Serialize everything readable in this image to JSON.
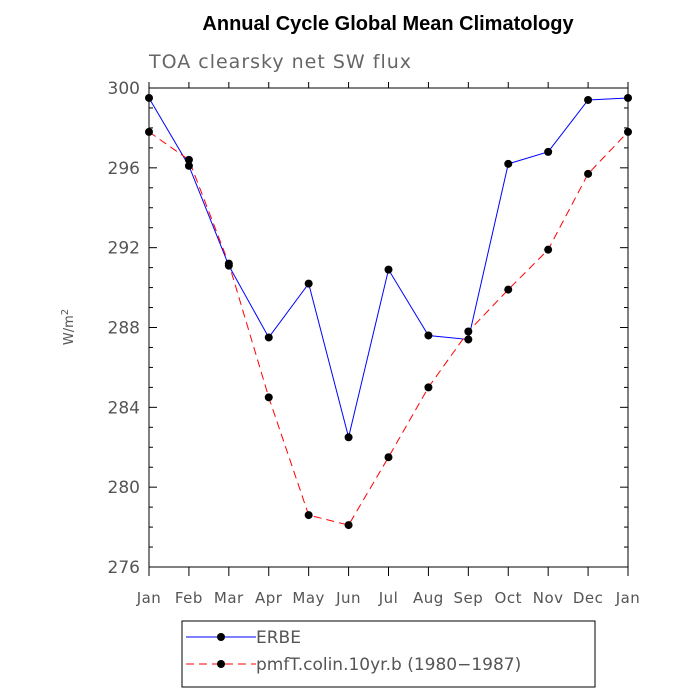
{
  "chart_data": {
    "type": "line",
    "title": "Annual Cycle Global Mean Climatology",
    "subtitle": "TOA clearsky net SW flux",
    "ylabel_base": "W/m",
    "ylabel_sup": "2",
    "xlabel": "",
    "categories": [
      "Jan",
      "Feb",
      "Mar",
      "Apr",
      "May",
      "Jun",
      "Jul",
      "Aug",
      "Sep",
      "Oct",
      "Nov",
      "Dec",
      "Jan"
    ],
    "ylim": [
      276,
      300
    ],
    "yticks": [
      276,
      280,
      284,
      288,
      292,
      296,
      300
    ],
    "grid": false,
    "legend_position": "bottom",
    "series": [
      {
        "name": "ERBE",
        "color": "#0000ff",
        "dash": "solid",
        "values": [
          299.5,
          296.1,
          291.1,
          287.5,
          290.2,
          282.5,
          290.9,
          287.6,
          287.4,
          296.2,
          296.8,
          299.4,
          299.5
        ]
      },
      {
        "name": "pmfT.colin.10yr.b (1980−1987)",
        "color": "#ff0000",
        "dash": "dashed",
        "values": [
          297.8,
          296.4,
          291.2,
          284.5,
          278.6,
          278.1,
          281.5,
          285.0,
          287.8,
          289.9,
          291.9,
          295.7,
          297.8
        ]
      }
    ]
  }
}
